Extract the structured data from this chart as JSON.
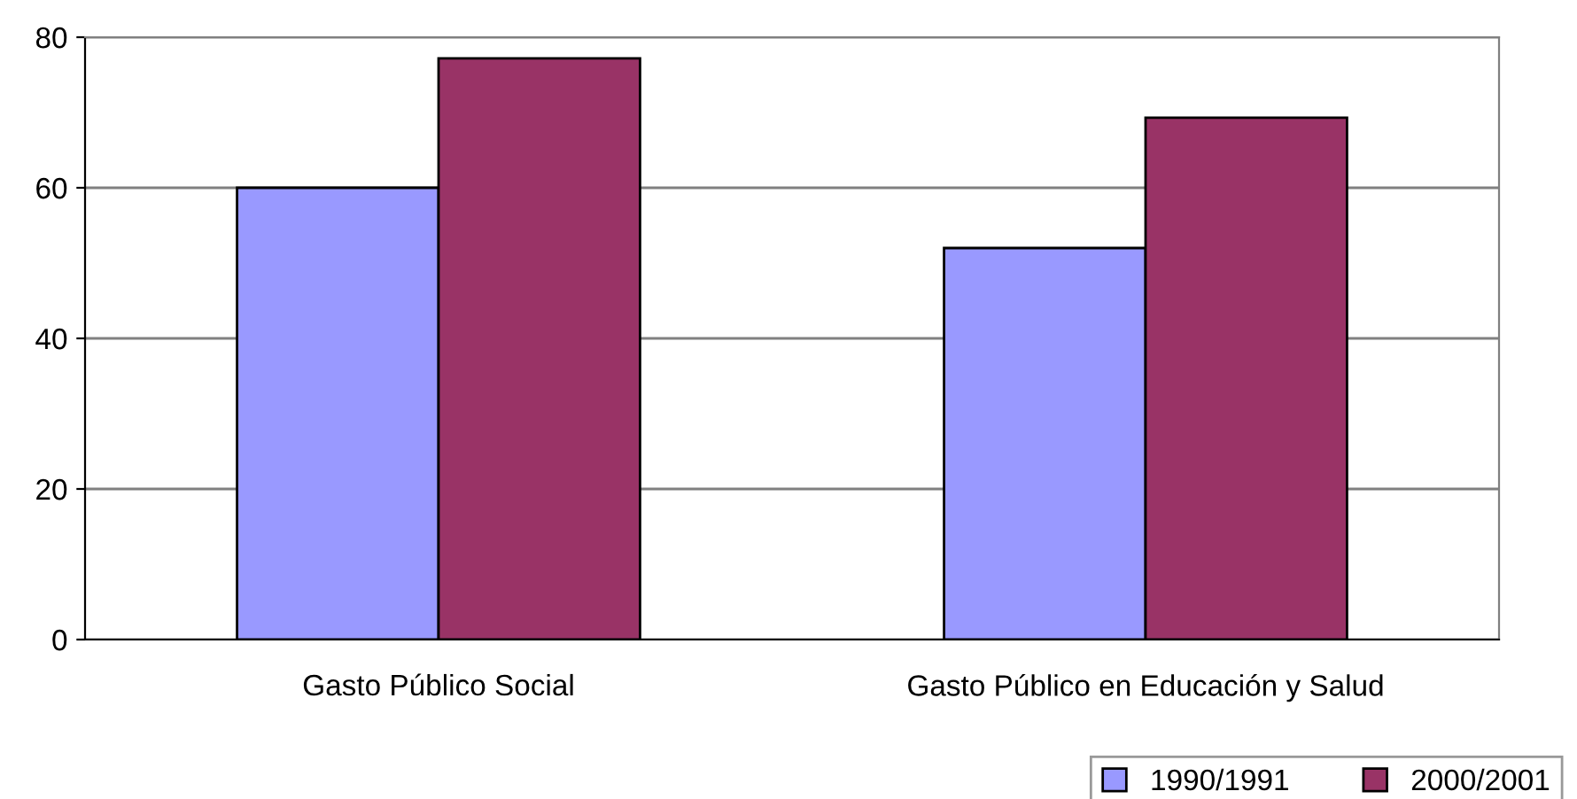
{
  "chart_data": {
    "type": "bar",
    "categories": [
      "Gasto Público Social",
      "Gasto Público en Educación y Salud"
    ],
    "series": [
      {
        "name": "1990/1991",
        "color": "#9999ff",
        "values": [
          60,
          52
        ]
      },
      {
        "name": "2000/2001",
        "color": "#993366",
        "values": [
          77.2,
          69.3
        ]
      }
    ],
    "ylim": [
      0,
      80
    ],
    "yticks": [
      0,
      20,
      40,
      60,
      80
    ],
    "grid": "y",
    "legend": "bottom right"
  }
}
